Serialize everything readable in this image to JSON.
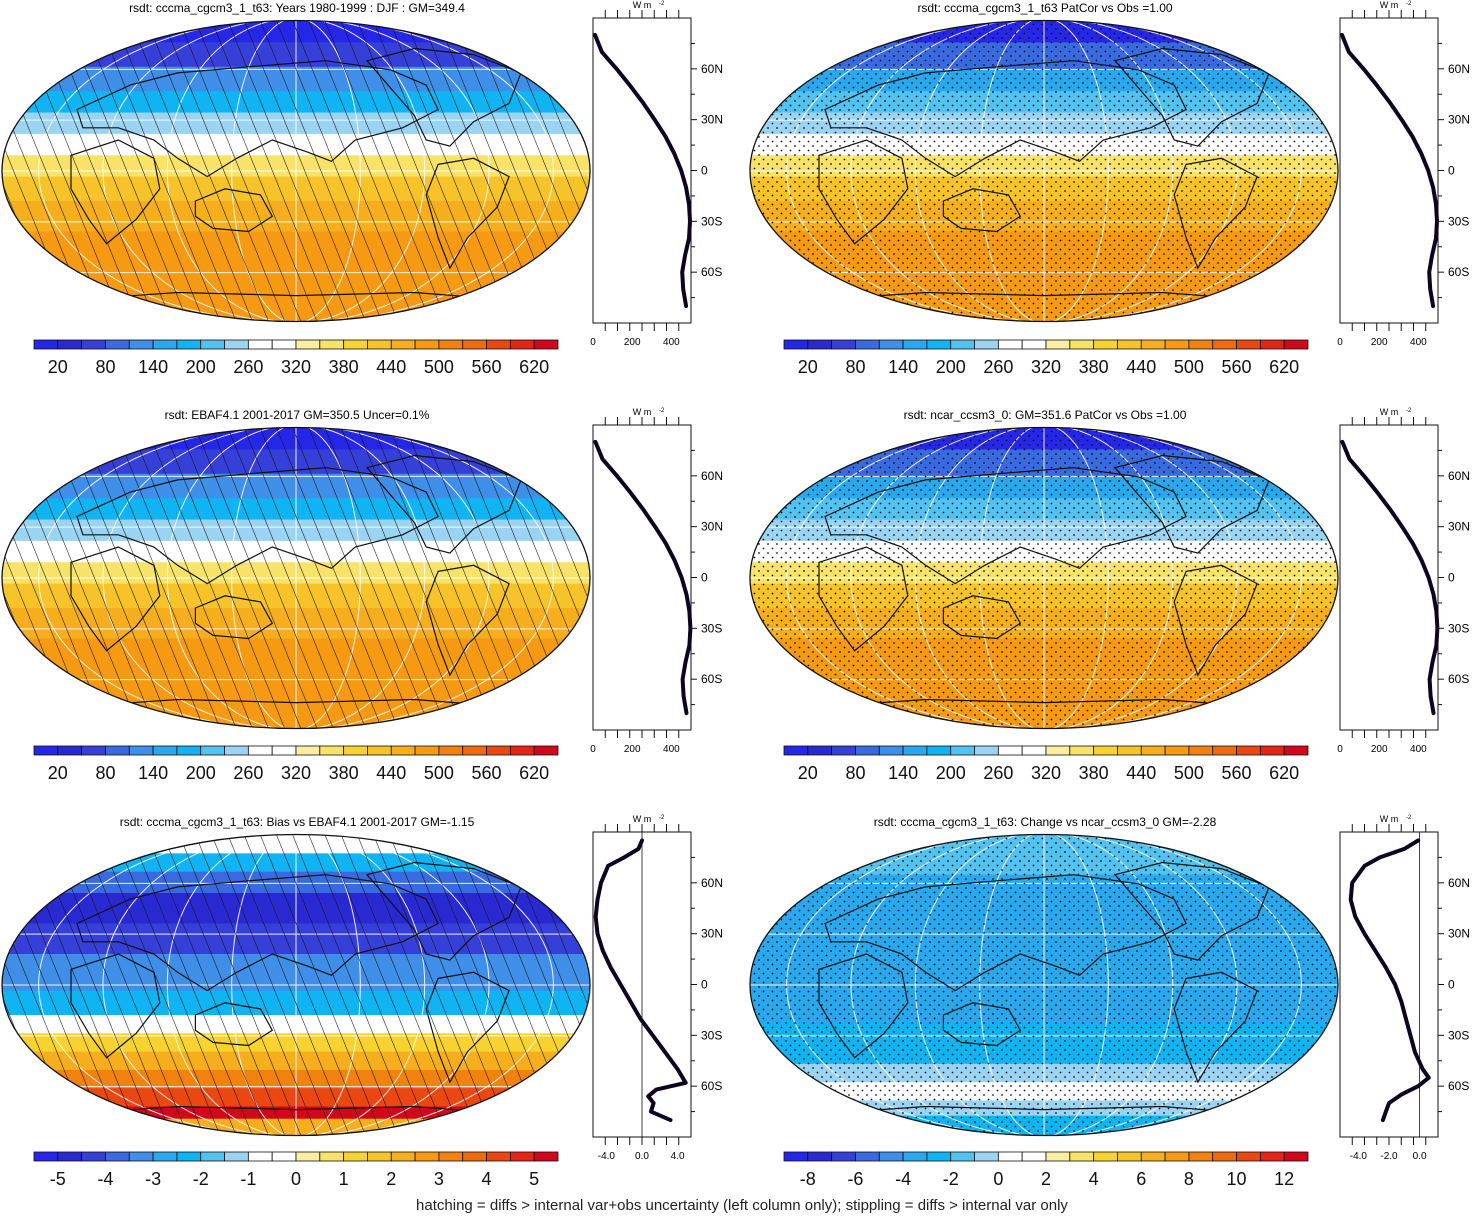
{
  "footer": "hatching = diffs > internal var+obs uncertainty (left column only); stippling = diffs > internal var only",
  "colors": {
    "absolute_scale": [
      "#2626e8",
      "#2929d2",
      "#3640d8",
      "#3a6ae0",
      "#3f8fe8",
      "#2aa8ee",
      "#11b4f2",
      "#52c2f0",
      "#9ad4f2",
      "#ffffff",
      "#ffffff",
      "#fbeea3",
      "#f8e36a",
      "#f7d331",
      "#f6c32a",
      "#f5ae1e",
      "#f59a12",
      "#f28210",
      "#ef6a10",
      "#ea4713",
      "#e52316",
      "#d2071b"
    ],
    "difference_scale": [
      "#2626e8",
      "#2929d2",
      "#3640d8",
      "#3a6ae0",
      "#3f8fe8",
      "#2aa8ee",
      "#11b4f2",
      "#52c2f0",
      "#9ad4f2",
      "#ffffff",
      "#ffffff",
      "#fbeea3",
      "#f8e36a",
      "#f7d331",
      "#f6c32a",
      "#f5ae1e",
      "#f59a12",
      "#f28210",
      "#ef6a10",
      "#ea4713",
      "#e52316",
      "#d2071b"
    ]
  },
  "chart_data": [
    {
      "type": "heatmap",
      "title": "rsdt: cccma_cgcm3_1_t63: Years 1980-1999 : DJF : GM=349.4",
      "pattern": "hatching",
      "colorbar": {
        "levels": [
          20,
          80,
          140,
          200,
          260,
          320,
          380,
          440,
          500,
          560,
          620
        ],
        "labels": [
          "20",
          "80",
          "140",
          "200",
          "260",
          "320",
          "380",
          "440",
          "500",
          "560",
          "620"
        ],
        "scale": "absolute_scale"
      },
      "zonal_profile": {
        "unit_label": "W m",
        "unit_exponent": "-2",
        "lat_ticks": [
          "60N",
          "30N",
          "0",
          "30S",
          "60S"
        ],
        "x_ticks": [
          "0",
          "200",
          "400"
        ],
        "xlim": [
          0,
          500
        ],
        "lat": [
          80,
          70,
          60,
          50,
          40,
          30,
          20,
          10,
          0,
          -10,
          -20,
          -30,
          -40,
          -50,
          -60,
          -70,
          -80
        ],
        "value": [
          10,
          45,
          120,
          190,
          255,
          315,
          370,
          415,
          450,
          475,
          490,
          495,
          490,
          470,
          455,
          460,
          475
        ]
      }
    },
    {
      "type": "heatmap",
      "title": "rsdt: cccma_cgcm3_1_t63 PatCor vs Obs =1.00",
      "pattern": "stippling",
      "colorbar": {
        "levels": [
          20,
          80,
          140,
          200,
          260,
          320,
          380,
          440,
          500,
          560,
          620
        ],
        "labels": [
          "20",
          "80",
          "140",
          "200",
          "260",
          "320",
          "380",
          "440",
          "500",
          "560",
          "620"
        ],
        "scale": "absolute_scale"
      },
      "zonal_profile": {
        "unit_label": "W m",
        "unit_exponent": "-2",
        "lat_ticks": [
          "60N",
          "30N",
          "0",
          "30S",
          "60S"
        ],
        "x_ticks": [
          "0",
          "200",
          "400"
        ],
        "xlim": [
          0,
          500
        ],
        "lat": [
          80,
          70,
          60,
          50,
          40,
          30,
          20,
          10,
          0,
          -10,
          -20,
          -30,
          -40,
          -50,
          -60,
          -70,
          -80
        ],
        "value": [
          10,
          45,
          120,
          190,
          255,
          315,
          370,
          415,
          450,
          475,
          490,
          495,
          490,
          470,
          455,
          460,
          475
        ]
      }
    },
    {
      "type": "heatmap",
      "title": "rsdt: EBAF4.1 2001-2017 GM=350.5 Uncer=0.1%",
      "pattern": "hatching",
      "colorbar": {
        "levels": [
          20,
          80,
          140,
          200,
          260,
          320,
          380,
          440,
          500,
          560,
          620
        ],
        "labels": [
          "20",
          "80",
          "140",
          "200",
          "260",
          "320",
          "380",
          "440",
          "500",
          "560",
          "620"
        ],
        "scale": "absolute_scale"
      },
      "zonal_profile": {
        "unit_label": "W m",
        "unit_exponent": "-2",
        "lat_ticks": [
          "60N",
          "30N",
          "0",
          "30S",
          "60S"
        ],
        "x_ticks": [
          "0",
          "200",
          "400"
        ],
        "xlim": [
          0,
          500
        ],
        "lat": [
          80,
          70,
          60,
          50,
          40,
          30,
          20,
          10,
          0,
          -10,
          -20,
          -30,
          -40,
          -50,
          -60,
          -70,
          -80
        ],
        "value": [
          12,
          48,
          122,
          192,
          257,
          317,
          372,
          417,
          452,
          477,
          492,
          497,
          492,
          472,
          457,
          462,
          477
        ]
      }
    },
    {
      "type": "heatmap",
      "title": "rsdt: ncar_ccsm3_0: GM=351.6 PatCor vs Obs =1.00",
      "pattern": "stippling",
      "colorbar": {
        "levels": [
          20,
          80,
          140,
          200,
          260,
          320,
          380,
          440,
          500,
          560,
          620
        ],
        "labels": [
          "20",
          "80",
          "140",
          "200",
          "260",
          "320",
          "380",
          "440",
          "500",
          "560",
          "620"
        ],
        "scale": "absolute_scale"
      },
      "zonal_profile": {
        "unit_label": "W m",
        "unit_exponent": "-2",
        "lat_ticks": [
          "60N",
          "30N",
          "0",
          "30S",
          "60S"
        ],
        "x_ticks": [
          "0",
          "200",
          "400"
        ],
        "xlim": [
          0,
          500
        ],
        "lat": [
          80,
          70,
          60,
          50,
          40,
          30,
          20,
          10,
          0,
          -10,
          -20,
          -30,
          -40,
          -50,
          -60,
          -70,
          -80
        ],
        "value": [
          12,
          48,
          122,
          192,
          257,
          317,
          372,
          417,
          452,
          477,
          492,
          497,
          492,
          472,
          457,
          462,
          477
        ]
      }
    },
    {
      "type": "heatmap",
      "title": "rsdt: cccma_cgcm3_1_t63: Bias vs EBAF4.1 2001-2017 GM=-1.15",
      "pattern": "hatching",
      "colorbar": {
        "levels": [
          -5,
          -4,
          -3,
          -2,
          -1,
          0,
          1,
          2,
          3,
          4,
          5
        ],
        "labels": [
          "-5",
          "-4",
          "-3",
          "-2",
          "-1",
          "0",
          "1",
          "2",
          "3",
          "4",
          "5"
        ],
        "scale": "difference_scale"
      },
      "zonal_profile": {
        "unit_label": "W m",
        "unit_exponent": "-2",
        "lat_ticks": [
          "60N",
          "30N",
          "0",
          "30S",
          "60S"
        ],
        "x_ticks": [
          "-4.0",
          "0.0",
          "4.0"
        ],
        "xlim": [
          -5.5,
          5.5
        ],
        "lat": [
          85,
          80,
          75,
          70,
          60,
          50,
          40,
          30,
          20,
          10,
          0,
          -10,
          -20,
          -30,
          -40,
          -50,
          -58,
          -62,
          -66,
          -70,
          -75,
          -80
        ],
        "value": [
          0,
          -0.4,
          -2,
          -3.8,
          -4.6,
          -5.0,
          -5.2,
          -5.0,
          -4.4,
          -3.5,
          -2.4,
          -1.3,
          -0.2,
          1.2,
          2.6,
          4.0,
          4.9,
          1.6,
          0.7,
          1.3,
          1.0,
          3.2
        ]
      }
    },
    {
      "type": "heatmap",
      "title": "rsdt: cccma_cgcm3_1_t63: Change vs ncar_ccsm3_0 GM=-2.28",
      "pattern": "stippling",
      "colorbar": {
        "levels": [
          -8,
          -6,
          -4,
          -2,
          0,
          2,
          4,
          6,
          8,
          10,
          12
        ],
        "labels": [
          "-8",
          "-6",
          "-4",
          "-2",
          "0",
          "2",
          "4",
          "6",
          "8",
          "10",
          "12"
        ],
        "scale": "difference_scale"
      },
      "zonal_profile": {
        "unit_label": "W m",
        "unit_exponent": "-2",
        "lat_ticks": [
          "60N",
          "30N",
          "0",
          "30S",
          "60S"
        ],
        "x_ticks": [
          "-4.0",
          "-2.0",
          "0.0"
        ],
        "xlim": [
          -5.2,
          1.2
        ],
        "lat": [
          85,
          80,
          75,
          70,
          60,
          50,
          40,
          30,
          20,
          10,
          0,
          -10,
          -20,
          -30,
          -40,
          -50,
          -55,
          -60,
          -65,
          -70,
          -75,
          -80
        ],
        "value": [
          -0.1,
          -1.0,
          -2.6,
          -3.6,
          -4.4,
          -4.5,
          -4.2,
          -3.6,
          -2.9,
          -2.2,
          -1.6,
          -1.2,
          -0.9,
          -0.6,
          -0.3,
          0.2,
          0.6,
          -0.1,
          -1.2,
          -2.0,
          -2.2,
          -2.4
        ]
      }
    }
  ]
}
